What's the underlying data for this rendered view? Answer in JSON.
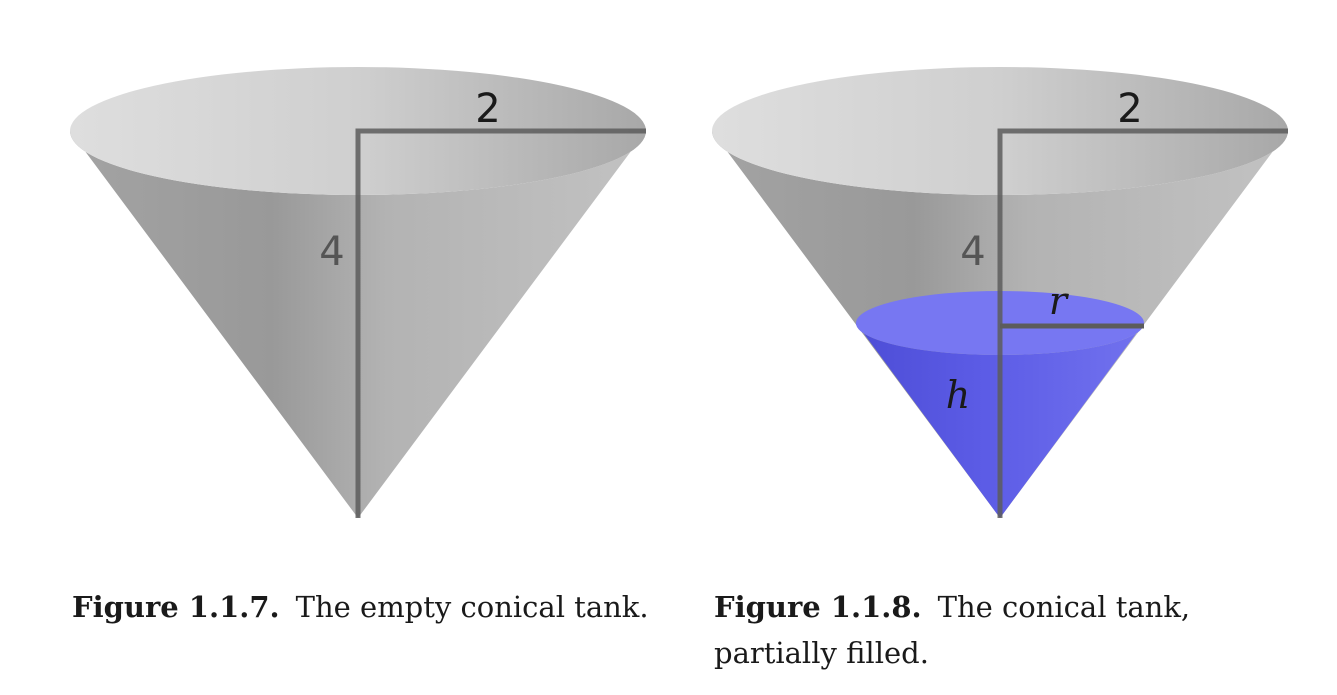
{
  "figures": [
    {
      "number": "Figure 1.1.7.",
      "caption": "The empty conical tank.",
      "radius_label": "2",
      "height_label": "4"
    },
    {
      "number": "Figure 1.1.8.",
      "caption": "The conical tank, partially filled.",
      "radius_label": "2",
      "height_label": "4",
      "water_radius_label": "r",
      "water_height_label": "h"
    }
  ],
  "colors": {
    "cone": "#b5b5b5",
    "rim": "#d0d0d0",
    "axis": "#5c5c5c",
    "water": "#6767ee",
    "water_top": "#7878f2"
  }
}
